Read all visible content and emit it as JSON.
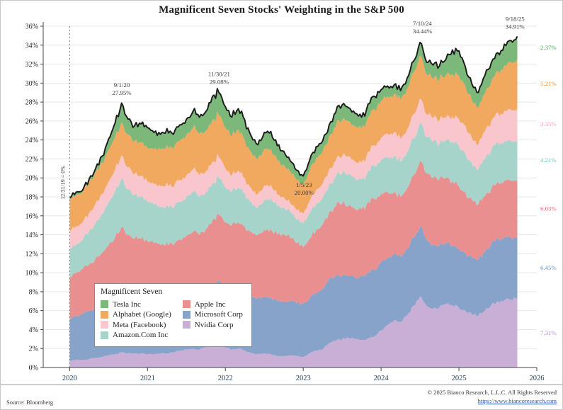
{
  "page_title": "Magnificent Seven Stocks' Weighting in the S&P 500",
  "chart_data": {
    "type": "area",
    "stacked": true,
    "title": "Magnificent Seven Stocks' Weighting in the S&P 500",
    "xlabel": "",
    "ylabel": "",
    "grid": "horizontal",
    "legend_position": "inside-bottom-left",
    "ylim": [
      0,
      36
    ],
    "ytick_step": 2,
    "ytick_suffix": "%",
    "xlim": [
      2019.66,
      2026
    ],
    "xticks": [
      2020,
      2021,
      2022,
      2023,
      2024,
      2025,
      2026
    ],
    "x_start": 2020.0,
    "x_step": 0.0833333,
    "total_line_color": "#1a1a1a",
    "start_line": {
      "x": 2020.0,
      "label": "12/31/19 = 0%"
    },
    "series": [
      {
        "name": "Nvidia Corp",
        "color": "#c9aed6",
        "end_label": "7.31%",
        "end_label_color": "#b48cc8",
        "values": [
          0.7,
          0.8,
          0.8,
          0.9,
          1.0,
          1.1,
          1.3,
          1.4,
          1.6,
          1.5,
          1.5,
          1.5,
          1.4,
          1.4,
          1.5,
          1.5,
          1.6,
          1.8,
          1.9,
          2.0,
          1.9,
          2.2,
          2.4,
          2.5,
          2.1,
          1.9,
          2.0,
          1.8,
          1.5,
          1.4,
          1.5,
          1.4,
          1.2,
          1.2,
          1.3,
          1.2,
          1.1,
          1.5,
          1.8,
          1.9,
          2.6,
          2.8,
          3.0,
          3.1,
          3.0,
          2.9,
          3.1,
          3.3,
          3.9,
          4.5,
          5.0,
          4.8,
          5.5,
          6.5,
          7.5,
          6.5,
          6.2,
          6.4,
          6.7,
          6.6,
          6.3,
          6.0,
          5.6,
          5.5,
          6.0,
          6.6,
          7.0,
          7.1,
          7.2,
          7.31
        ]
      },
      {
        "name": "Microsoft Corp",
        "color": "#87a3c9",
        "end_label": "6.45%",
        "end_label_color": "#6e90bd",
        "values": [
          4.5,
          4.6,
          4.8,
          5.1,
          5.3,
          5.5,
          5.6,
          5.7,
          5.9,
          5.7,
          5.5,
          5.4,
          5.3,
          5.4,
          5.3,
          5.5,
          5.4,
          5.6,
          5.8,
          6.0,
          5.9,
          6.1,
          6.4,
          6.6,
          6.2,
          6.0,
          6.1,
          6.0,
          5.9,
          5.9,
          6.0,
          6.0,
          5.8,
          5.8,
          5.7,
          5.6,
          5.6,
          5.8,
          6.1,
          6.4,
          6.8,
          6.8,
          6.7,
          6.6,
          6.5,
          6.7,
          7.0,
          7.0,
          7.2,
          7.1,
          7.0,
          6.9,
          7.0,
          7.2,
          7.4,
          7.0,
          6.7,
          6.5,
          6.4,
          6.3,
          6.2,
          6.1,
          6.0,
          5.9,
          6.2,
          6.5,
          6.7,
          6.6,
          6.5,
          6.45
        ]
      },
      {
        "name": "Apple Inc",
        "color": "#e98f8f",
        "end_label": "6.03%",
        "end_label_color": "#e06a6a",
        "values": [
          4.4,
          4.6,
          4.8,
          4.9,
          5.2,
          5.5,
          6.0,
          6.6,
          7.3,
          6.8,
          6.6,
          6.7,
          6.6,
          6.3,
          6.1,
          6.2,
          5.9,
          6.1,
          6.2,
          6.3,
          6.2,
          6.3,
          6.7,
          7.0,
          7.0,
          7.1,
          7.2,
          7.1,
          6.9,
          6.7,
          7.0,
          7.2,
          7.0,
          7.1,
          6.7,
          6.3,
          6.0,
          6.3,
          6.6,
          6.8,
          7.0,
          7.4,
          7.6,
          7.4,
          7.2,
          7.1,
          7.4,
          7.5,
          7.2,
          6.9,
          6.5,
          6.3,
          6.4,
          6.6,
          6.9,
          7.0,
          7.1,
          7.0,
          6.9,
          6.8,
          6.6,
          6.4,
          6.1,
          5.8,
          5.9,
          5.8,
          5.9,
          6.0,
          6.0,
          6.03
        ]
      },
      {
        "name": "Amazon.Com Inc",
        "color": "#a6d4cb",
        "end_label": "4.21%",
        "end_label_color": "#72bfb0",
        "values": [
          2.9,
          3.0,
          3.1,
          3.5,
          3.8,
          4.1,
          4.5,
          4.9,
          5.2,
          4.8,
          4.6,
          4.4,
          4.2,
          4.1,
          4.0,
          4.0,
          3.9,
          4.0,
          4.1,
          4.2,
          4.0,
          3.9,
          3.9,
          3.9,
          3.7,
          3.5,
          3.7,
          3.5,
          3.1,
          2.9,
          3.2,
          3.3,
          3.0,
          2.8,
          2.7,
          2.5,
          2.5,
          2.7,
          2.8,
          2.8,
          2.9,
          3.1,
          3.2,
          3.3,
          3.2,
          3.1,
          3.3,
          3.5,
          3.6,
          3.7,
          3.8,
          3.7,
          3.8,
          3.9,
          4.0,
          3.8,
          3.8,
          3.7,
          3.9,
          4.2,
          4.3,
          4.1,
          3.8,
          3.7,
          3.9,
          4.1,
          4.2,
          4.2,
          4.2,
          4.21
        ]
      },
      {
        "name": "Meta (Facebook)",
        "color": "#f9c6cd",
        "end_label": "3.35%",
        "end_label_color": "#f4a0ab",
        "values": [
          1.9,
          1.9,
          1.8,
          1.9,
          2.0,
          2.1,
          2.2,
          2.3,
          2.4,
          2.3,
          2.2,
          2.2,
          2.1,
          2.1,
          2.2,
          2.3,
          2.2,
          2.3,
          2.3,
          2.4,
          2.3,
          2.2,
          2.3,
          2.2,
          2.0,
          1.7,
          1.8,
          1.6,
          1.5,
          1.4,
          1.5,
          1.4,
          1.2,
          1.1,
          0.9,
          1.0,
          1.0,
          1.3,
          1.5,
          1.5,
          1.6,
          1.7,
          1.8,
          1.9,
          1.8,
          1.8,
          2.0,
          2.1,
          2.3,
          2.5,
          2.5,
          2.4,
          2.4,
          2.5,
          2.6,
          2.4,
          2.5,
          2.5,
          2.5,
          2.6,
          2.8,
          2.9,
          2.7,
          2.6,
          2.9,
          3.0,
          3.1,
          3.2,
          3.3,
          3.35
        ]
      },
      {
        "name": "Alphabet (Google)",
        "color": "#f0a95f",
        "end_label": "5.21%",
        "end_label_color": "#e88c35",
        "values": [
          3.3,
          3.3,
          3.2,
          3.3,
          3.3,
          3.3,
          3.4,
          3.4,
          3.5,
          3.4,
          3.5,
          3.5,
          3.5,
          3.7,
          3.9,
          4.0,
          4.1,
          4.2,
          4.3,
          4.4,
          4.3,
          4.3,
          4.4,
          4.4,
          4.3,
          4.2,
          4.3,
          4.0,
          3.8,
          3.7,
          3.9,
          3.8,
          3.6,
          3.4,
          3.3,
          3.2,
          3.1,
          3.2,
          3.3,
          3.4,
          3.5,
          3.6,
          3.8,
          3.7,
          3.7,
          3.6,
          3.7,
          3.8,
          3.9,
          3.9,
          4.0,
          4.1,
          4.3,
          4.4,
          4.5,
          4.2,
          4.1,
          4.3,
          4.4,
          4.5,
          4.6,
          4.2,
          4.0,
          3.9,
          4.0,
          4.2,
          4.4,
          4.8,
          5.0,
          5.21
        ]
      },
      {
        "name": "Tesla Inc",
        "color": "#7cb87a",
        "end_label": "2.37%",
        "end_label_color": "#3fae49",
        "values": [
          0.2,
          0.3,
          0.2,
          0.3,
          0.4,
          0.7,
          1.1,
          1.5,
          2.0,
          1.7,
          1.6,
          2.0,
          2.2,
          1.8,
          1.6,
          1.7,
          1.5,
          1.6,
          1.6,
          1.7,
          1.8,
          2.0,
          2.5,
          2.4,
          2.2,
          2.0,
          2.2,
          2.1,
          1.7,
          1.5,
          1.7,
          1.8,
          1.6,
          1.4,
          1.2,
          1.0,
          0.9,
          1.1,
          1.2,
          1.1,
          1.2,
          1.5,
          1.6,
          1.4,
          1.4,
          1.2,
          1.3,
          1.4,
          1.2,
          1.1,
          1.0,
          1.0,
          1.1,
          1.2,
          1.4,
          1.3,
          1.5,
          1.4,
          1.7,
          2.5,
          2.6,
          2.0,
          1.7,
          1.6,
          1.9,
          2.0,
          1.9,
          2.2,
          2.3,
          2.37
        ]
      }
    ],
    "annotations": [
      {
        "date": "9/1/20",
        "value": "27.95%",
        "x": 2020.67,
        "y": 27.95,
        "placement": "above"
      },
      {
        "date": "11/30/21",
        "value": "29.08%",
        "x": 2021.92,
        "y": 29.08,
        "placement": "above"
      },
      {
        "date": "1/5/23",
        "value": "20.00%",
        "x": 2023.01,
        "y": 20.0,
        "placement": "below"
      },
      {
        "date": "7/10/24",
        "value": "34.44%",
        "x": 2024.53,
        "y": 34.44,
        "placement": "above"
      },
      {
        "date": "9/18/25",
        "value": "34.91%",
        "x": 2025.72,
        "y": 34.91,
        "placement": "above"
      }
    ]
  },
  "legend": {
    "title": "Magnificent Seven",
    "items": [
      {
        "label": "Tesla Inc",
        "color": "#7cb87a"
      },
      {
        "label": "Alphabet (Google)",
        "color": "#f0a95f"
      },
      {
        "label": "Meta (Facebook)",
        "color": "#f9c6cd"
      },
      {
        "label": "Amazon.Com Inc",
        "color": "#a6d4cb"
      },
      {
        "label": "Apple Inc",
        "color": "#e98f8f"
      },
      {
        "label": "Microsoft Corp",
        "color": "#87a3c9"
      },
      {
        "label": "Nvidia Corp",
        "color": "#c9aed6"
      }
    ]
  },
  "footer": {
    "source": "Source: Bloomberg",
    "copyright": "© 2025 Bianco Research, L.L.C. All Rights Reserved",
    "link": "https://www.biancoresearch.com"
  }
}
